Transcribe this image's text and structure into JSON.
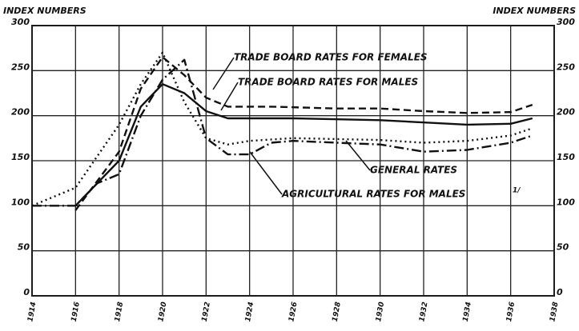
{
  "chart_data": {
    "type": "line",
    "y_label_left": "INDEX NUMBERS",
    "y_label_right": "INDEX NUMBERS",
    "xlim": [
      1914,
      1938
    ],
    "xticks": [
      1914,
      1916,
      1918,
      1920,
      1922,
      1924,
      1926,
      1928,
      1930,
      1932,
      1934,
      1936,
      1938
    ],
    "ylim": [
      0,
      300
    ],
    "yticks": [
      0,
      50,
      100,
      150,
      200,
      250,
      300
    ],
    "grid": true,
    "series": [
      {
        "name": "TRADE BOARD RATES FOR FEMALES",
        "color": "#111",
        "dash": "9 5",
        "x": [
          1916,
          1918,
          1919,
          1920,
          1921,
          1922,
          1923,
          1925,
          1928,
          1930,
          1932,
          1934,
          1936,
          1937
        ],
        "values": [
          95,
          160,
          230,
          265,
          245,
          220,
          210,
          210,
          208,
          208,
          205,
          203,
          204,
          212
        ]
      },
      {
        "name": "TRADE BOARD RATES FOR MALES",
        "color": "#111",
        "dash": "none",
        "x": [
          1916,
          1918,
          1919,
          1920,
          1921,
          1922,
          1923,
          1926,
          1930,
          1934,
          1936,
          1937
        ],
        "values": [
          100,
          150,
          210,
          235,
          225,
          205,
          197,
          197,
          195,
          190,
          191,
          197
        ]
      },
      {
        "name": "GENERAL RATES",
        "color": "#111",
        "dash": "2 4",
        "x": [
          1914,
          1916,
          1918,
          1919,
          1920,
          1921,
          1922,
          1923,
          1924,
          1926,
          1930,
          1932,
          1934,
          1936,
          1937
        ],
        "values": [
          100,
          120,
          190,
          235,
          270,
          215,
          175,
          168,
          172,
          175,
          173,
          170,
          172,
          178,
          186
        ]
      },
      {
        "name": "AGRICULTURAL RATES FOR MALES",
        "color": "#111",
        "dash": "12 4 2 4",
        "x": [
          1914,
          1916,
          1917,
          1918,
          1919,
          1920,
          1921,
          1922,
          1923,
          1924,
          1925,
          1926,
          1928,
          1930,
          1932,
          1934,
          1936,
          1937
        ],
        "values": [
          100,
          100,
          125,
          135,
          200,
          240,
          262,
          175,
          157,
          157,
          170,
          172,
          170,
          168,
          160,
          162,
          170,
          178
        ]
      }
    ],
    "footnote_marker": "1/"
  }
}
